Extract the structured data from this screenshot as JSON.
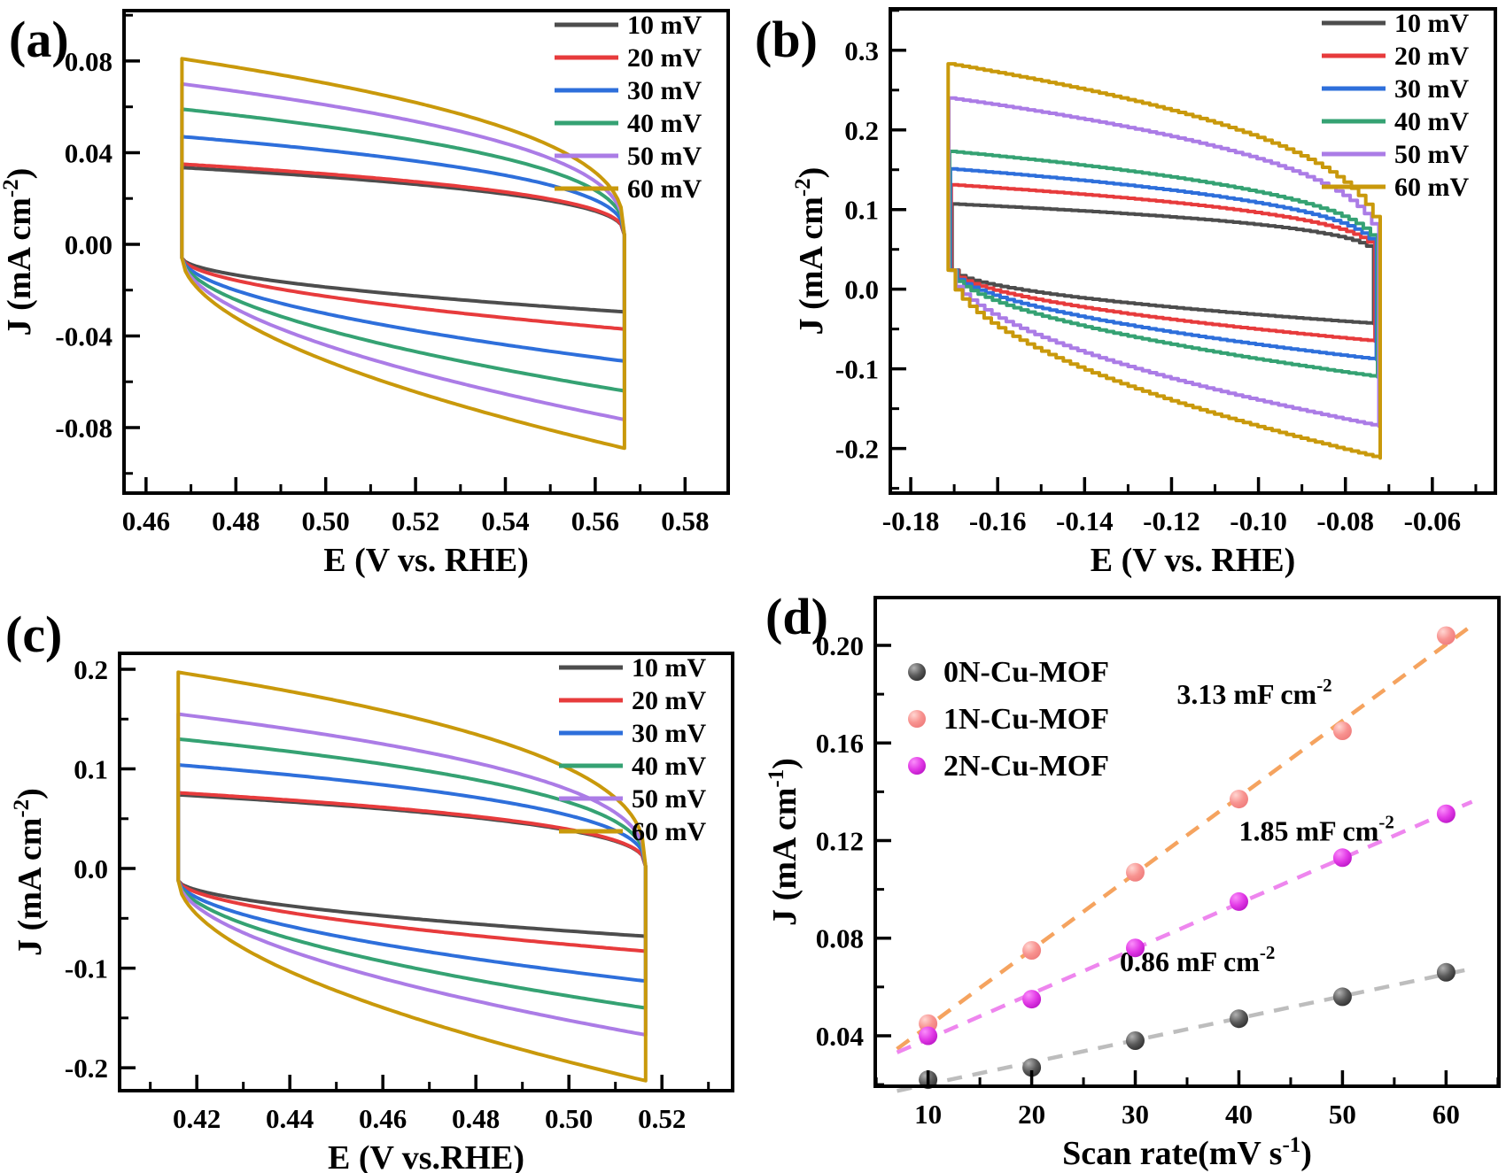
{
  "figure": {
    "background": "#ffffff",
    "frame_color": "#000000",
    "panels": [
      {
        "id": "a",
        "label": "(a)",
        "xlabel_segments": [
          {
            "t": "E (V vs. RHE)"
          }
        ],
        "ylabel_segments": [
          {
            "t": "J (mA cm"
          },
          {
            "t": "-2",
            "sup": true
          },
          {
            "t": ")"
          }
        ],
        "xlim": [
          0.4551,
          0.5896
        ],
        "ylim": [
          -0.1086,
          0.102
        ],
        "xticks": {
          "values": [
            0.46,
            0.48,
            0.5,
            0.52,
            0.54,
            0.56,
            0.58
          ],
          "labels": [
            "0.46",
            "0.48",
            "0.50",
            "0.52",
            "0.54",
            "0.56",
            "0.58"
          ]
        },
        "yticks": {
          "values": [
            0.08,
            0.04,
            0.0,
            -0.04,
            -0.08
          ],
          "labels": [
            "0.08",
            "0.04",
            "0.00",
            "-0.04",
            "-0.08"
          ]
        },
        "legend": {
          "style": "line",
          "items": [
            {
              "label": "10 mV",
              "color": "#4d4d4d"
            },
            {
              "label": "20 mV",
              "color": "#e73b3c"
            },
            {
              "label": "30 mV",
              "color": "#2e6fdb"
            },
            {
              "label": "40 mV",
              "color": "#35a273"
            },
            {
              "label": "50 mV",
              "color": "#ab7ce6"
            },
            {
              "label": "60 mV",
              "color": "#c9990b"
            }
          ]
        }
      },
      {
        "id": "b",
        "label": "(b)",
        "xlabel_segments": [
          {
            "t": "E (V vs. RHE)"
          }
        ],
        "ylabel_segments": [
          {
            "t": "J (mA cm"
          },
          {
            "t": "-2",
            "sup": true
          },
          {
            "t": ")"
          }
        ],
        "xlim": [
          -0.1847,
          -0.0455
        ],
        "ylim": [
          -0.256,
          0.352
        ],
        "xticks": {
          "values": [
            -0.18,
            -0.16,
            -0.14,
            -0.12,
            -0.1,
            -0.08,
            -0.06
          ],
          "labels": [
            "-0.18",
            "-0.16",
            "-0.14",
            "-0.12",
            "-0.10",
            "-0.08",
            "-0.06"
          ]
        },
        "yticks": {
          "values": [
            0.3,
            0.2,
            0.1,
            0.0,
            -0.1,
            -0.2
          ],
          "labels": [
            "0.3",
            "0.2",
            "0.1",
            "0.0",
            "-0.1",
            "-0.2"
          ]
        },
        "legend": {
          "style": "line",
          "items": [
            {
              "label": "10 mV",
              "color": "#4d4d4d"
            },
            {
              "label": "20 mV",
              "color": "#e73b3c"
            },
            {
              "label": "30 mV",
              "color": "#2e6fdb"
            },
            {
              "label": "40 mV",
              "color": "#35a273"
            },
            {
              "label": "50 mV",
              "color": "#ab7ce6"
            },
            {
              "label": "60 mV",
              "color": "#c9990b"
            }
          ]
        }
      },
      {
        "id": "c",
        "label": "(c)",
        "xlabel_segments": [
          {
            "t": "E (V vs.RHE)"
          }
        ],
        "ylabel_segments": [
          {
            "t": "J (mA cm"
          },
          {
            "t": "-2",
            "sup": true
          },
          {
            "t": ")"
          }
        ],
        "xlim": [
          0.4034,
          0.5352
        ],
        "ylim": [
          -0.223,
          0.216
        ],
        "xticks": {
          "values": [
            0.42,
            0.44,
            0.46,
            0.48,
            0.5,
            0.52
          ],
          "labels": [
            "0.42",
            "0.44",
            "0.46",
            "0.48",
            "0.50",
            "0.52"
          ]
        },
        "yticks": {
          "values": [
            0.2,
            0.1,
            0.0,
            -0.1,
            -0.2
          ],
          "labels": [
            "0.2",
            "0.1",
            "0.0",
            "-0.1",
            "-0.2"
          ]
        },
        "legend": {
          "style": "line",
          "items": [
            {
              "label": "10 mV",
              "color": "#4d4d4d"
            },
            {
              "label": "20 mV",
              "color": "#e73b3c"
            },
            {
              "label": "30 mV",
              "color": "#2e6fdb"
            },
            {
              "label": "40 mV",
              "color": "#35a273"
            },
            {
              "label": "50 mV",
              "color": "#ab7ce6"
            },
            {
              "label": "60 mV",
              "color": "#c9990b"
            }
          ]
        }
      },
      {
        "id": "d",
        "label": "(d)",
        "xlabel_segments": [
          {
            "t": "Scan rate(mV s"
          },
          {
            "t": "-1",
            "sup": true
          },
          {
            "t": ")"
          }
        ],
        "ylabel_segments": [
          {
            "t": "J (mA cm"
          },
          {
            "t": "-1",
            "sup": true
          },
          {
            "t": ")"
          }
        ],
        "xlim": [
          4.9,
          65.1
        ],
        "ylim": [
          0.0193,
          0.2196
        ],
        "xticks": {
          "values": [
            10,
            20,
            30,
            40,
            50,
            60
          ],
          "labels": [
            "10",
            "20",
            "30",
            "40",
            "50",
            "60"
          ]
        },
        "yticks": {
          "values": [
            0.2,
            0.16,
            0.12,
            0.08,
            0.04
          ],
          "labels": [
            "0.20",
            "0.16",
            "0.12",
            "0.08",
            "0.04"
          ]
        },
        "legend": {
          "style": "dot",
          "items": [
            {
              "label": "0N-Cu-MOF",
              "color": "#4f4f4f"
            },
            {
              "label": "1N-Cu-MOF",
              "color": "#f89390"
            },
            {
              "label": "2N-Cu-MOF",
              "color": "#e23ae6"
            }
          ]
        }
      }
    ]
  },
  "chart_data": [
    {
      "panel": "a",
      "type": "line",
      "kind": "cyclic-voltammetry",
      "xlabel": "E (V vs. RHE)",
      "ylabel": "J (mA cm-2)",
      "xlim": [
        0.4551,
        0.5896
      ],
      "ylim": [
        -0.1086,
        0.102
      ],
      "x_range": [
        0.468,
        0.5665
      ],
      "pinch_right": 0.004,
      "pinch_left": -0.006,
      "stepped": false,
      "curves": [
        {
          "name": "10 mV",
          "color": "#4d4d4d",
          "j_top_left": 0.0335,
          "j_bottom_right": -0.0295
        },
        {
          "name": "20 mV",
          "color": "#e73b3c",
          "j_top_left": 0.035,
          "j_bottom_right": -0.037
        },
        {
          "name": "30 mV",
          "color": "#2e6fdb",
          "j_top_left": 0.047,
          "j_bottom_right": -0.051
        },
        {
          "name": "40 mV",
          "color": "#35a273",
          "j_top_left": 0.059,
          "j_bottom_right": -0.064
        },
        {
          "name": "50 mV",
          "color": "#ab7ce6",
          "j_top_left": 0.07,
          "j_bottom_right": -0.0765
        },
        {
          "name": "60 mV",
          "color": "#c9990b",
          "j_top_left": 0.081,
          "j_bottom_right": -0.089
        }
      ]
    },
    {
      "panel": "b",
      "type": "line",
      "kind": "cyclic-voltammetry",
      "xlabel": "E (V vs. RHE)",
      "ylabel": "J (mA cm-2)",
      "xlim": [
        -0.1847,
        -0.0455
      ],
      "ylim": [
        -0.256,
        0.352
      ],
      "x_range": [
        -0.1705,
        -0.0735
      ],
      "pinch_right": 0.04,
      "pinch_left": 0.024,
      "stepped": true,
      "curves": [
        {
          "name": "10 mV",
          "color": "#4d4d4d",
          "j_top_left": 0.107,
          "j_bottom_right": -0.043
        },
        {
          "name": "20 mV",
          "color": "#e73b3c",
          "j_top_left": 0.131,
          "j_bottom_right": -0.065
        },
        {
          "name": "30 mV",
          "color": "#2e6fdb",
          "j_top_left": 0.151,
          "j_bottom_right": -0.088
        },
        {
          "name": "40 mV",
          "color": "#35a273",
          "j_top_left": 0.173,
          "j_bottom_right": -0.11
        },
        {
          "name": "50 mV",
          "color": "#ab7ce6",
          "j_top_left": 0.24,
          "j_bottom_right": -0.172
        },
        {
          "name": "60 mV",
          "color": "#c9990b",
          "j_top_left": 0.283,
          "j_bottom_right": -0.212
        }
      ]
    },
    {
      "panel": "c",
      "type": "line",
      "kind": "cyclic-voltammetry",
      "xlabel": "E (V vs.RHE)",
      "ylabel": "J (mA cm-2)",
      "xlim": [
        0.4034,
        0.5352
      ],
      "ylim": [
        -0.223,
        0.216
      ],
      "x_range": [
        0.416,
        0.5165
      ],
      "pinch_right": 0.002,
      "pinch_left": -0.012,
      "stepped": false,
      "curves": [
        {
          "name": "10 mV",
          "color": "#4d4d4d",
          "j_top_left": 0.074,
          "j_bottom_right": -0.068
        },
        {
          "name": "20 mV",
          "color": "#e73b3c",
          "j_top_left": 0.076,
          "j_bottom_right": -0.083
        },
        {
          "name": "30 mV",
          "color": "#2e6fdb",
          "j_top_left": 0.104,
          "j_bottom_right": -0.113
        },
        {
          "name": "40 mV",
          "color": "#35a273",
          "j_top_left": 0.13,
          "j_bottom_right": -0.14
        },
        {
          "name": "50 mV",
          "color": "#ab7ce6",
          "j_top_left": 0.155,
          "j_bottom_right": -0.167
        },
        {
          "name": "60 mV",
          "color": "#c9990b",
          "j_top_left": 0.197,
          "j_bottom_right": -0.213
        }
      ]
    },
    {
      "panel": "d",
      "type": "scatter",
      "xlabel": "Scan rate(mV s-1)",
      "ylabel": "J (mA cm-1)",
      "xlim": [
        4.9,
        65.1
      ],
      "ylim": [
        0.0193,
        0.2196
      ],
      "x": [
        10,
        20,
        30,
        40,
        50,
        60
      ],
      "series": [
        {
          "name": "0N-Cu-MOF",
          "values": [
            0.022,
            0.027,
            0.038,
            0.047,
            0.056,
            0.066
          ],
          "marker_gradient": [
            "#b2b2b2",
            "#5a5a5a",
            "#2e2e2e"
          ],
          "fit_color": "#bdbdbd",
          "capacitance": "0.86 mF cm-2"
        },
        {
          "name": "1N-Cu-MOF",
          "values": [
            0.045,
            0.075,
            0.107,
            0.137,
            0.165,
            0.204
          ],
          "marker_gradient": [
            "#ffd6d2",
            "#f89390",
            "#ee7b7b"
          ],
          "fit_color": "#f5a35f",
          "capacitance": "3.13 mF cm-2"
        },
        {
          "name": "2N-Cu-MOF",
          "values": [
            0.04,
            0.055,
            0.076,
            0.095,
            0.113,
            0.131
          ],
          "marker_gradient": [
            "#fa8efa",
            "#e23ae6",
            "#ba15c6"
          ],
          "fit_color": "#ee86ee",
          "capacitance": "1.85 mF cm-2"
        }
      ],
      "fit_line_x_range": [
        7.0,
        62.5
      ],
      "annotations": [
        {
          "segments": [
            {
              "t": "3.13 mF cm"
            },
            {
              "t": "-2",
              "sup": true
            }
          ],
          "x": 41.5,
          "y": 0.176
        },
        {
          "segments": [
            {
              "t": "1.85 mF cm"
            },
            {
              "t": "-2",
              "sup": true
            }
          ],
          "x": 47.5,
          "y": 0.12
        },
        {
          "segments": [
            {
              "t": "0.86 mF cm"
            },
            {
              "t": "-2",
              "sup": true
            }
          ],
          "x": 36.0,
          "y": 0.0665
        }
      ]
    }
  ]
}
